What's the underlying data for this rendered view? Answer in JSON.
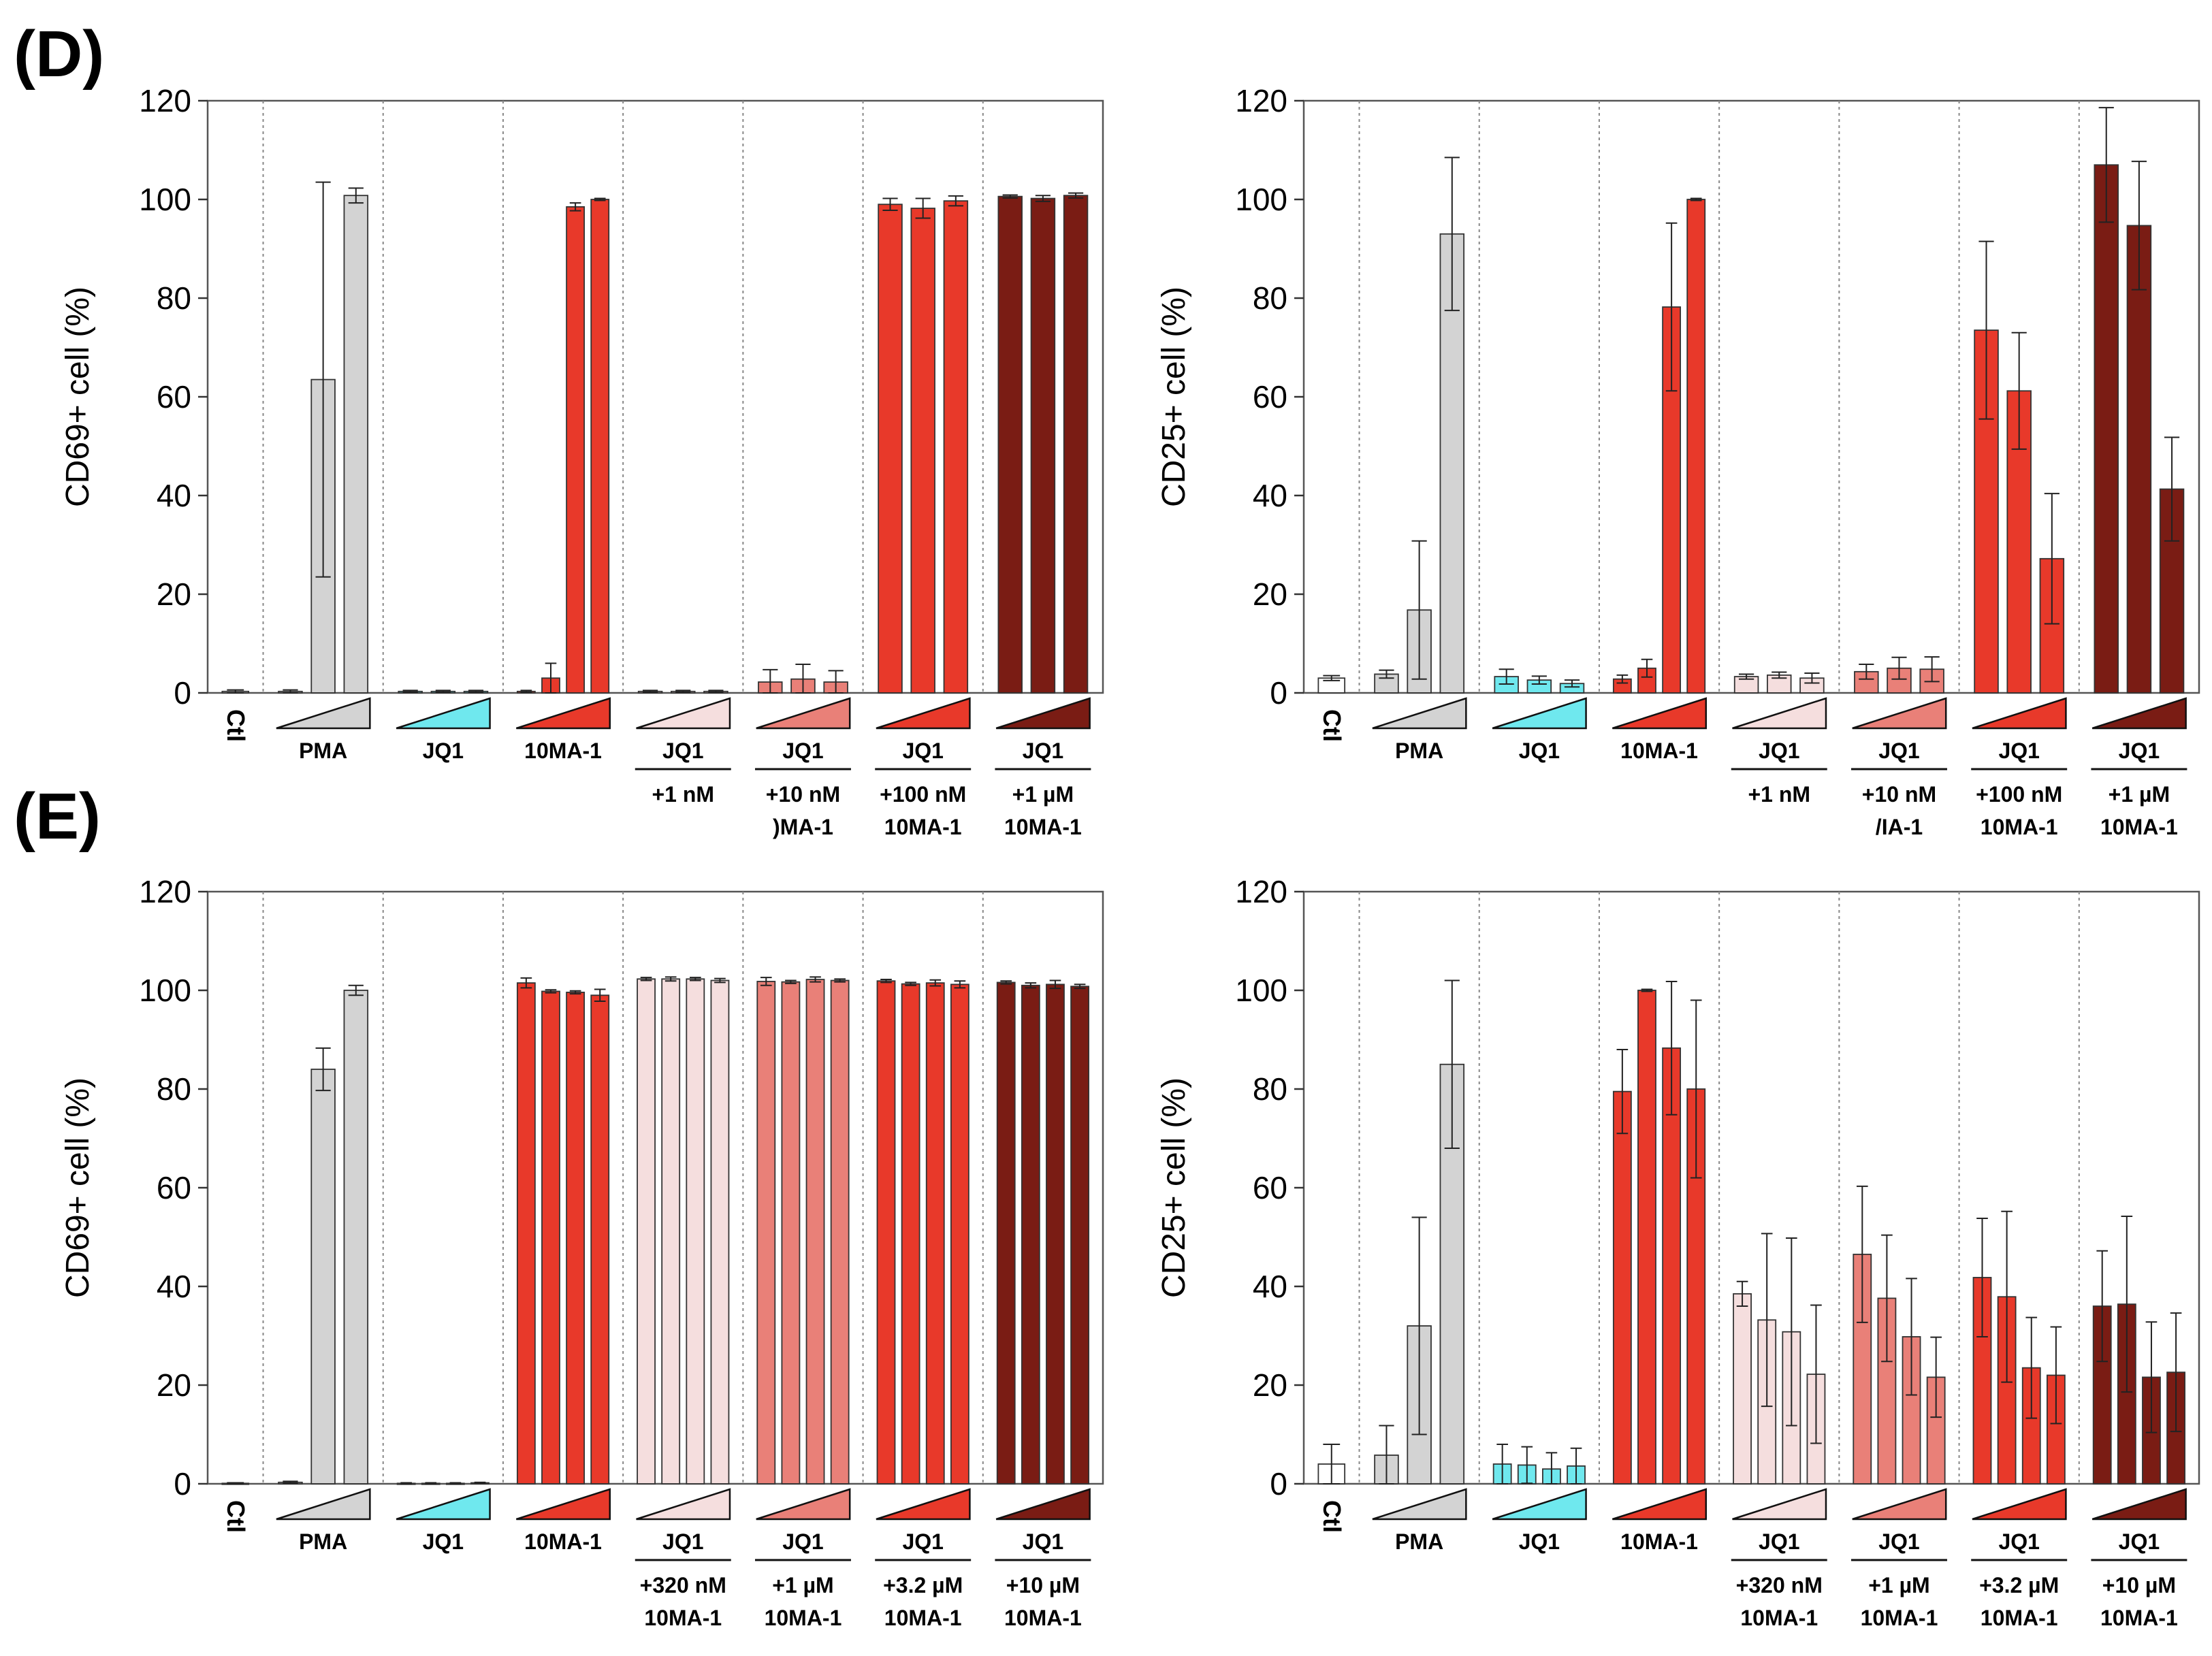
{
  "figure": {
    "panel_labels": [
      "(D)",
      "(E)"
    ]
  },
  "colors": {
    "ctl": "#ffffff",
    "pma": "#d3d3d3",
    "jq1": "#6fe8ee",
    "ma": "#e8392a",
    "ma_light": "#f5dede",
    "ma_mid": "#e98078",
    "ma_dark": "#7a1c14",
    "stroke": "#333333"
  },
  "chart_data": [
    {
      "id": "D-CD69",
      "type": "bar",
      "panel": "(D)",
      "ylabel": "CD69+ cell (%)",
      "ylim": [
        0,
        120
      ],
      "yticks": [
        0,
        20,
        40,
        60,
        80,
        100,
        120
      ],
      "groups": [
        {
          "label": "Ctl",
          "sub": [],
          "color": "ctl",
          "ramp": false,
          "values": [
            0.3
          ],
          "errors": [
            0.3
          ]
        },
        {
          "label": "PMA",
          "sub": [],
          "color": "pma",
          "ramp": true,
          "values": [
            0.3,
            63.5,
            100.8
          ],
          "errors": [
            0.3,
            40,
            1.5
          ]
        },
        {
          "label": "JQ1",
          "sub": [],
          "color": "jq1",
          "ramp": true,
          "values": [
            0.3,
            0.3,
            0.3
          ],
          "errors": [
            0.2,
            0.2,
            0.2
          ]
        },
        {
          "label": "10MA-1",
          "sub": [],
          "color": "ma",
          "ramp": true,
          "values": [
            0.3,
            3,
            98.5,
            100
          ],
          "errors": [
            0.2,
            3,
            0.8,
            0.2
          ]
        },
        {
          "label": "JQ1",
          "sub": [
            "+1 nM"
          ],
          "color": "ma_light",
          "ramp": true,
          "values": [
            0.3,
            0.3,
            0.3
          ],
          "errors": [
            0.2,
            0.2,
            0.2
          ]
        },
        {
          "label": "JQ1",
          "sub": [
            "+10 nM",
            ")MA-1"
          ],
          "color": "ma_mid",
          "ramp": true,
          "values": [
            2.2,
            2.8,
            2.2
          ],
          "errors": [
            2.5,
            3,
            2.3
          ]
        },
        {
          "label": "JQ1",
          "sub": [
            "+100 nM",
            "10MA-1"
          ],
          "color": "ma",
          "ramp": true,
          "values": [
            99,
            98.2,
            99.7
          ],
          "errors": [
            1.2,
            2,
            1
          ]
        },
        {
          "label": "JQ1",
          "sub": [
            "+1 µM",
            "10MA-1"
          ],
          "color": "ma_dark",
          "ramp": true,
          "values": [
            100.6,
            100.2,
            100.8
          ],
          "errors": [
            0.3,
            0.6,
            0.5
          ]
        }
      ]
    },
    {
      "id": "D-CD25",
      "type": "bar",
      "panel": "(D)",
      "ylabel": "CD25+ cell (%)",
      "ylim": [
        0,
        120
      ],
      "yticks": [
        0,
        20,
        40,
        60,
        80,
        100,
        120
      ],
      "groups": [
        {
          "label": "Ctl",
          "sub": [],
          "color": "ctl",
          "ramp": false,
          "values": [
            3
          ],
          "errors": [
            0.5
          ]
        },
        {
          "label": "PMA",
          "sub": [],
          "color": "pma",
          "ramp": true,
          "values": [
            3.8,
            16.8,
            93
          ],
          "errors": [
            0.8,
            14,
            15.5
          ]
        },
        {
          "label": "JQ1",
          "sub": [],
          "color": "jq1",
          "ramp": true,
          "values": [
            3.3,
            2.6,
            1.9
          ],
          "errors": [
            1.5,
            0.8,
            0.7
          ]
        },
        {
          "label": "10MA-1",
          "sub": [],
          "color": "ma",
          "ramp": true,
          "values": [
            2.8,
            5,
            78.2,
            100
          ],
          "errors": [
            0.8,
            1.8,
            17,
            0.2
          ]
        },
        {
          "label": "JQ1",
          "sub": [
            "+1 nM"
          ],
          "color": "ma_light",
          "ramp": true,
          "values": [
            3.3,
            3.6,
            3
          ],
          "errors": [
            0.5,
            0.6,
            1
          ]
        },
        {
          "label": "JQ1",
          "sub": [
            "+10 nM",
            "/IA-1"
          ],
          "color": "ma_mid",
          "ramp": true,
          "values": [
            4.3,
            5,
            4.8
          ],
          "errors": [
            1.5,
            2.2,
            2.5
          ]
        },
        {
          "label": "JQ1",
          "sub": [
            "+100 nM",
            "10MA-1"
          ],
          "color": "ma",
          "ramp": true,
          "values": [
            73.5,
            61.2,
            27.2
          ],
          "errors": [
            18,
            11.8,
            13.2
          ]
        },
        {
          "label": "JQ1",
          "sub": [
            "+1 µM",
            "10MA-1"
          ],
          "color": "ma_dark",
          "ramp": true,
          "values": [
            107,
            94.7,
            41.3
          ],
          "errors": [
            11.6,
            13,
            10.5
          ]
        }
      ]
    },
    {
      "id": "E-CD69",
      "type": "bar",
      "panel": "(E)",
      "ylabel": "CD69+ cell (%)",
      "ylim": [
        0,
        120
      ],
      "yticks": [
        0,
        20,
        40,
        60,
        80,
        100,
        120
      ],
      "groups": [
        {
          "label": "Ctl",
          "sub": [],
          "color": "ctl",
          "ramp": false,
          "values": [
            0.1
          ],
          "errors": [
            0.1
          ]
        },
        {
          "label": "PMA",
          "sub": [],
          "color": "pma",
          "ramp": true,
          "values": [
            0.3,
            84,
            100
          ],
          "errors": [
            0.2,
            4.3,
            1
          ]
        },
        {
          "label": "JQ1",
          "sub": [],
          "color": "jq1",
          "ramp": true,
          "values": [
            0.1,
            0.1,
            0.1,
            0.2
          ],
          "errors": [
            0.1,
            0.1,
            0.1,
            0.1
          ]
        },
        {
          "label": "10MA-1",
          "sub": [],
          "color": "ma",
          "ramp": true,
          "values": [
            101.5,
            99.8,
            99.6,
            99
          ],
          "errors": [
            1,
            0.3,
            0.3,
            1.2
          ]
        },
        {
          "label": "JQ1",
          "sub": [
            "+320 nM",
            "10MA-1"
          ],
          "color": "ma_light",
          "ramp": true,
          "values": [
            102.3,
            102.3,
            102.3,
            102
          ],
          "errors": [
            0.3,
            0.4,
            0.3,
            0.4
          ]
        },
        {
          "label": "JQ1",
          "sub": [
            "+1 µM",
            "10MA-1"
          ],
          "color": "ma_mid",
          "ramp": true,
          "values": [
            101.8,
            101.7,
            102.2,
            102
          ],
          "errors": [
            0.8,
            0.3,
            0.5,
            0.3
          ]
        },
        {
          "label": "JQ1",
          "sub": [
            "+3.2 µM",
            "10MA-1"
          ],
          "color": "ma",
          "ramp": true,
          "values": [
            101.9,
            101.3,
            101.5,
            101.2
          ],
          "errors": [
            0.3,
            0.3,
            0.6,
            0.7
          ]
        },
        {
          "label": "JQ1",
          "sub": [
            "+10 µM",
            "10MA-1"
          ],
          "color": "ma_dark",
          "ramp": true,
          "values": [
            101.6,
            101,
            101.2,
            100.8
          ],
          "errors": [
            0.3,
            0.5,
            0.8,
            0.4
          ]
        }
      ]
    },
    {
      "id": "E-CD25",
      "type": "bar",
      "panel": "(E)",
      "ylabel": "CD25+ cell (%)",
      "ylim": [
        0,
        120
      ],
      "yticks": [
        0,
        20,
        40,
        60,
        80,
        100,
        120
      ],
      "groups": [
        {
          "label": "Ctl",
          "sub": [],
          "color": "ctl",
          "ramp": false,
          "values": [
            4
          ],
          "errors": [
            4
          ]
        },
        {
          "label": "PMA",
          "sub": [],
          "color": "pma",
          "ramp": true,
          "values": [
            5.8,
            32,
            85
          ],
          "errors": [
            6,
            22,
            17
          ]
        },
        {
          "label": "JQ1",
          "sub": [],
          "color": "jq1",
          "ramp": true,
          "values": [
            4,
            3.8,
            3,
            3.6
          ],
          "errors": [
            4,
            3.7,
            3.3,
            3.6
          ]
        },
        {
          "label": "10MA-1",
          "sub": [],
          "color": "ma",
          "ramp": true,
          "values": [
            79.5,
            100,
            88.3,
            80
          ],
          "errors": [
            8.5,
            0.2,
            13.5,
            18
          ]
        },
        {
          "label": "JQ1",
          "sub": [
            "+320 nM",
            "10MA-1"
          ],
          "color": "ma_light",
          "ramp": true,
          "values": [
            38.5,
            33.2,
            30.8,
            22.2
          ],
          "errors": [
            2.5,
            17.5,
            19,
            14
          ]
        },
        {
          "label": "JQ1",
          "sub": [
            "+1 µM",
            "10MA-1"
          ],
          "color": "ma_mid",
          "ramp": true,
          "values": [
            46.5,
            37.6,
            29.8,
            21.6
          ],
          "errors": [
            13.8,
            12.8,
            11.8,
            8.1
          ]
        },
        {
          "label": "JQ1",
          "sub": [
            "+3.2 µM",
            "10MA-1"
          ],
          "color": "ma",
          "ramp": true,
          "values": [
            41.8,
            37.9,
            23.5,
            22
          ],
          "errors": [
            12,
            17.3,
            10.2,
            9.8
          ]
        },
        {
          "label": "JQ1",
          "sub": [
            "+10 µM",
            "10MA-1"
          ],
          "color": "ma_dark",
          "ramp": true,
          "values": [
            36,
            36.4,
            21.6,
            22.6
          ],
          "errors": [
            11.2,
            17.8,
            11.2,
            12
          ]
        }
      ]
    }
  ]
}
